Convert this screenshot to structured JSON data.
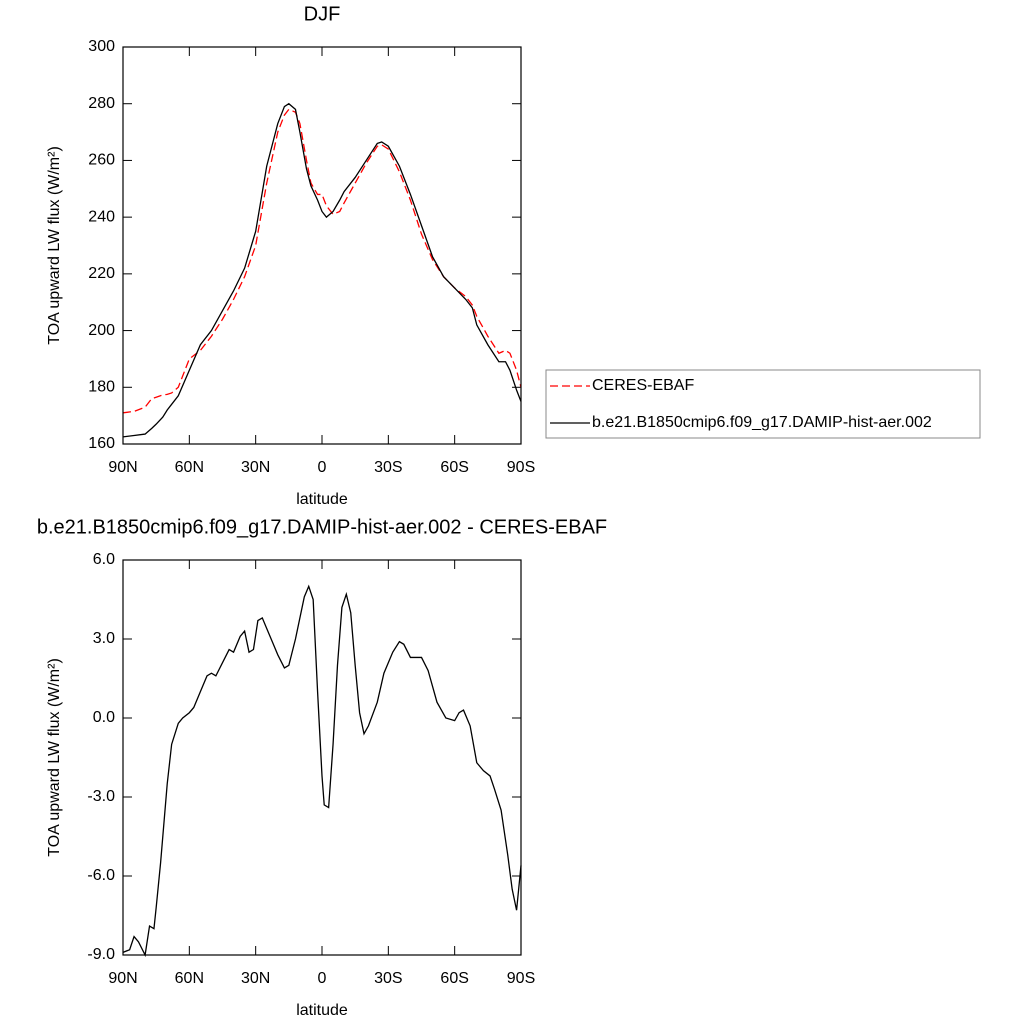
{
  "chart_data": [
    {
      "type": "line",
      "title": "DJF",
      "xlabel": "latitude",
      "ylabel": "TOA upward LW flux (W/m²)",
      "x": [
        90,
        85,
        80,
        77,
        75,
        72,
        70,
        68,
        65,
        60,
        55,
        50,
        45,
        40,
        35,
        30,
        25,
        20,
        17,
        15,
        12,
        10,
        7,
        5,
        2,
        0,
        -2,
        -5,
        -8,
        -10,
        -15,
        -20,
        -25,
        -27,
        -30,
        -35,
        -40,
        -45,
        -50,
        -55,
        -60,
        -65,
        -68,
        -70,
        -75,
        -80,
        -83,
        -85,
        -88,
        -90
      ],
      "series": [
        {
          "name": "CERES-EBAF",
          "color": "#ff0000",
          "dash": "dashed",
          "values": [
            171,
            171.5,
            173,
            176,
            176.5,
            177.3,
            177.5,
            178,
            180,
            190,
            193,
            198,
            204,
            211,
            219,
            230,
            252,
            270,
            276,
            278,
            277,
            273,
            260,
            252,
            248,
            248,
            244,
            241,
            242,
            245,
            252,
            259,
            265,
            265.5,
            264,
            256,
            246,
            234,
            225,
            219,
            215,
            212,
            209,
            205,
            198,
            192,
            193,
            192,
            186,
            180
          ]
        },
        {
          "name": "b.e21.B1850cmip6.f09_g17.DAMIP-hist-aer.002",
          "color": "#000000",
          "dash": "solid",
          "values": [
            162.5,
            163,
            163.5,
            165.5,
            167,
            169.5,
            172,
            174,
            177,
            186,
            195,
            200,
            207,
            214,
            222,
            235,
            258,
            273,
            279,
            280,
            278,
            270,
            257,
            251,
            246,
            242,
            240,
            242,
            246,
            249,
            254,
            260,
            266,
            266.5,
            265,
            258,
            248,
            237,
            226,
            219,
            215,
            211,
            208,
            202,
            195,
            189,
            189,
            186,
            179,
            175
          ]
        }
      ],
      "xlim": [
        90,
        -90
      ],
      "xticks": [
        {
          "value": 90,
          "label": "90N"
        },
        {
          "value": 60,
          "label": "60N"
        },
        {
          "value": 30,
          "label": "30N"
        },
        0,
        {
          "value": -30,
          "label": "30S"
        },
        {
          "value": -60,
          "label": "60S"
        },
        {
          "value": -90,
          "label": "90S"
        }
      ],
      "ylim": [
        160,
        300
      ],
      "yticks": [
        160,
        180,
        200,
        220,
        240,
        260,
        280,
        300
      ],
      "legend": "right"
    },
    {
      "type": "line",
      "title": "b.e21.B1850cmip6.f09_g17.DAMIP-hist-aer.002 - CERES-EBAF",
      "xlabel": "latitude",
      "ylabel": "TOA upward LW flux (W/m²)",
      "x": [
        90,
        87,
        85,
        83,
        80,
        78,
        76,
        75,
        73,
        70,
        68,
        65,
        63,
        60,
        58,
        55,
        52,
        50,
        48,
        45,
        42,
        40,
        37,
        35,
        33,
        31,
        29,
        27,
        25,
        22,
        20,
        17,
        15,
        12,
        8,
        6,
        4,
        2,
        0,
        -1,
        -3,
        -5,
        -7,
        -9,
        -11,
        -13,
        -15,
        -17,
        -19,
        -21,
        -25,
        -28,
        -32,
        -35,
        -37,
        -40,
        -45,
        -48,
        -52,
        -56,
        -60,
        -62,
        -64,
        -67,
        -70,
        -73,
        -76,
        -78,
        -81,
        -84,
        -86,
        -88,
        -90
      ],
      "series": [
        {
          "color": "#000000",
          "dash": "solid",
          "values": [
            -8.9,
            -8.8,
            -8.3,
            -8.5,
            -9.0,
            -7.9,
            -8.0,
            -7.2,
            -5.5,
            -2.5,
            -1.0,
            -0.2,
            0.0,
            0.2,
            0.4,
            1.0,
            1.6,
            1.7,
            1.6,
            2.1,
            2.6,
            2.5,
            3.1,
            3.3,
            2.5,
            2.6,
            3.7,
            3.8,
            3.4,
            2.8,
            2.4,
            1.9,
            2.0,
            3.0,
            4.6,
            5.0,
            4.5,
            1.0,
            -2.2,
            -3.3,
            -3.4,
            -1.0,
            2.0,
            4.2,
            4.7,
            4.0,
            2.0,
            0.2,
            -0.6,
            -0.3,
            0.6,
            1.7,
            2.5,
            2.9,
            2.8,
            2.3,
            2.3,
            1.8,
            0.6,
            0.0,
            -0.1,
            0.2,
            0.3,
            -0.3,
            -1.7,
            -2.0,
            -2.2,
            -2.7,
            -3.5,
            -5.2,
            -6.5,
            -7.3,
            -5.6
          ]
        }
      ],
      "xlim": [
        90,
        -90
      ],
      "xticks": [
        {
          "value": 90,
          "label": "90N"
        },
        {
          "value": 60,
          "label": "60N"
        },
        {
          "value": 30,
          "label": "30N"
        },
        0,
        {
          "value": -30,
          "label": "30S"
        },
        {
          "value": -60,
          "label": "60S"
        },
        {
          "value": -90,
          "label": "90S"
        }
      ],
      "ylim": [
        -9,
        6
      ],
      "yticks": [
        {
          "value": -9,
          "label": "-9.0"
        },
        {
          "value": -6,
          "label": "-6.0"
        },
        {
          "value": -3,
          "label": "-3.0"
        },
        {
          "value": 0,
          "label": "0.0"
        },
        {
          "value": 3,
          "label": "3.0"
        },
        {
          "value": 6,
          "label": "6.0"
        }
      ]
    }
  ]
}
